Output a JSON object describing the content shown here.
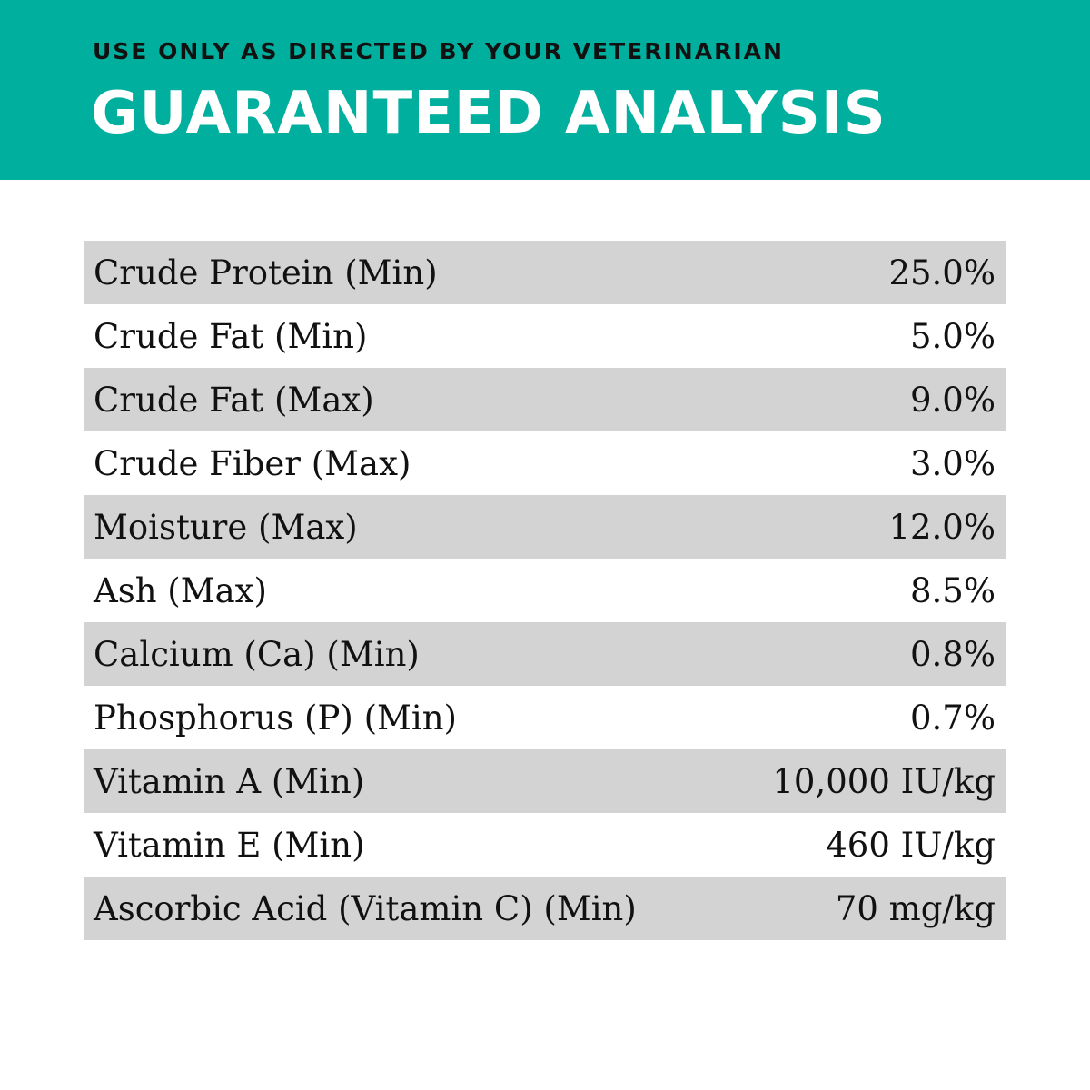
{
  "header": {
    "subtitle": "USE ONLY AS DIRECTED BY YOUR VETERINARIAN",
    "title": "GUARANTEED ANALYSIS"
  },
  "table": {
    "rows": [
      [
        "Crude Protein (Min)",
        "25.0%"
      ],
      [
        "Crude Fat (Min)",
        "5.0%"
      ],
      [
        "Crude Fat (Max)",
        "9.0%"
      ],
      [
        "Crude Fiber (Max)",
        "3.0%"
      ],
      [
        "Moisture (Max)",
        "12.0%"
      ],
      [
        "Ash (Max)",
        "8.5%"
      ],
      [
        "Calcium (Ca) (Min)",
        "0.8%"
      ],
      [
        "Phosphorus (P) (Min)",
        "0.7%"
      ],
      [
        "Vitamin A (Min)",
        "10,000 IU/kg"
      ],
      [
        "Vitamin E (Min)",
        "460 IU/kg"
      ],
      [
        "Ascorbic Acid (Vitamin C) (Min)",
        "70 mg/kg"
      ]
    ]
  }
}
